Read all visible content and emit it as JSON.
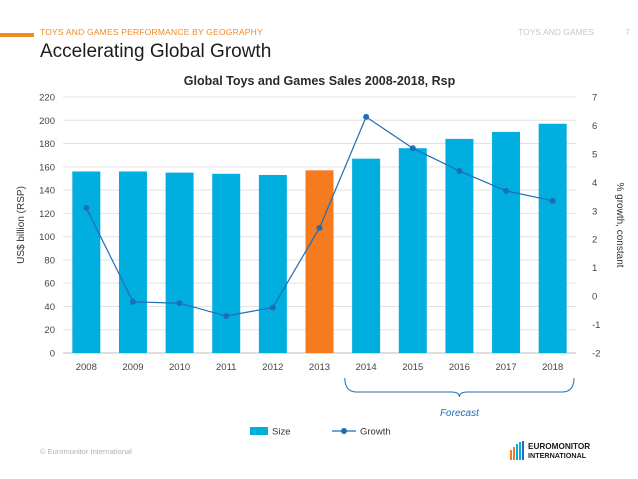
{
  "header": {
    "section": "TOYS AND GAMES PERFORMANCE BY GEOGRAPHY",
    "right_label": "TOYS AND GAMES",
    "page_number": "7",
    "title": "Accelerating Global Growth"
  },
  "footer": {
    "copyright": "© Euromonitor International",
    "logo_line1": "EUROMONITOR",
    "logo_line2": "INTERNATIONAL"
  },
  "colors": {
    "accent": "#f08a24",
    "bar": "#00aee0",
    "highlight": "#f47b20",
    "line": "#1f6db3"
  },
  "chart_data": {
    "type": "bar",
    "title": "Global Toys and Games Sales 2008-2018, Rsp",
    "categories": [
      "2008",
      "2009",
      "2010",
      "2011",
      "2012",
      "2013",
      "2014",
      "2015",
      "2016",
      "2017",
      "2018"
    ],
    "series": [
      {
        "name": "Size",
        "type": "bar",
        "axis": "left",
        "values": [
          156,
          156,
          155,
          154,
          153,
          157,
          167,
          176,
          184,
          190,
          197
        ]
      },
      {
        "name": "Growth",
        "type": "line",
        "axis": "right",
        "values": [
          3.1,
          -0.2,
          -0.25,
          -0.7,
          -0.4,
          2.4,
          6.3,
          5.2,
          4.4,
          3.7,
          3.35
        ]
      }
    ],
    "highlight_category": "2013",
    "ylabel": "US$ billion (RSP)",
    "y2label": "% growth, constant",
    "ylim": [
      0,
      220
    ],
    "y2lim": [
      -2,
      7
    ],
    "yticks": [
      "0",
      "20",
      "40",
      "60",
      "80",
      "100",
      "120",
      "140",
      "160",
      "180",
      "200",
      "220"
    ],
    "y2ticks": [
      "-2",
      "-1",
      "0",
      "1",
      "2",
      "3",
      "4",
      "5",
      "6",
      "7"
    ],
    "annotation": {
      "text": "Forecast",
      "from": "2014",
      "to": "2018"
    },
    "legend": {
      "position": "bottom",
      "entries": [
        "Size",
        "Growth"
      ]
    }
  }
}
